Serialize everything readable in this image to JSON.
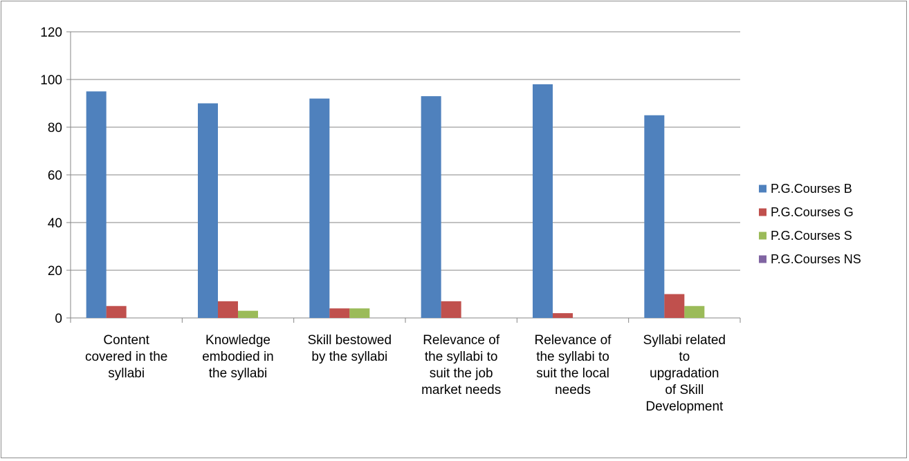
{
  "chart_data": {
    "type": "bar",
    "title": "",
    "xlabel": "",
    "ylabel": "",
    "ylim": [
      0,
      120
    ],
    "yticks": [
      0,
      20,
      40,
      60,
      80,
      100,
      120
    ],
    "grid": true,
    "legend_position": "right",
    "categories": [
      [
        "Content",
        "covered in the",
        "syllabi"
      ],
      [
        "Knowledge",
        "embodied in",
        "the syllabi"
      ],
      [
        "Skill bestowed",
        "by the syllabi"
      ],
      [
        "Relevance of",
        "the syllabi to",
        "suit the job",
        "market needs"
      ],
      [
        "Relevance of",
        "the syllabi to",
        "suit the local",
        "needs"
      ],
      [
        "Syllabi related",
        "to",
        "upgradation",
        "of Skill",
        "Development"
      ]
    ],
    "series": [
      {
        "name": "P.G.Courses B",
        "color": "#4f81bd",
        "values": [
          95,
          90,
          92,
          93,
          98,
          85
        ]
      },
      {
        "name": "P.G.Courses G",
        "color": "#c0504d",
        "values": [
          5,
          7,
          4,
          7,
          2,
          10
        ]
      },
      {
        "name": "P.G.Courses S",
        "color": "#9bbb59",
        "values": [
          0,
          3,
          4,
          0,
          0,
          5
        ]
      },
      {
        "name": "P.G.Courses NS",
        "color": "#8064a2",
        "values": [
          0,
          0,
          0,
          0,
          0,
          0
        ]
      }
    ]
  }
}
